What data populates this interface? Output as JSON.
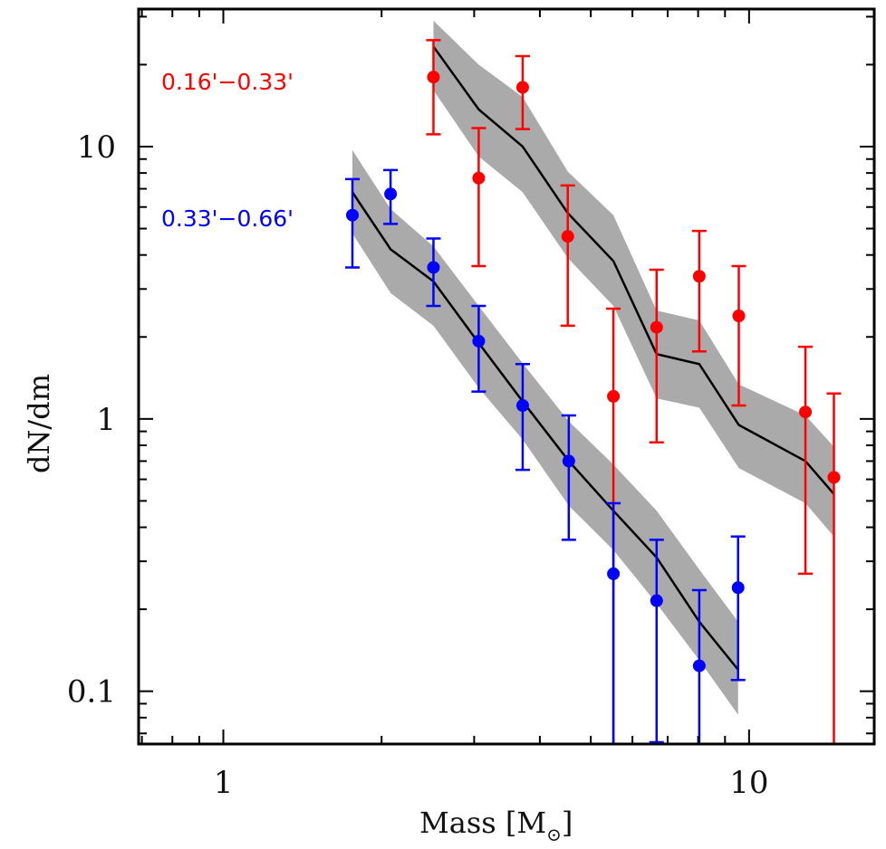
{
  "chart_data": {
    "type": "scatter",
    "title": "",
    "xlabel": "Mass [M",
    "xlabel_sub": "⊙",
    "xlabel_close": "]",
    "ylabel": "dN/dm",
    "xscale": "log",
    "yscale": "log",
    "xlim": [
      0.69,
      17.3
    ],
    "ylim": [
      0.064,
      32
    ],
    "x_ticks": [
      {
        "value": 1,
        "label": "1"
      },
      {
        "value": 10,
        "label": "10"
      }
    ],
    "y_ticks": [
      {
        "value": 0.1,
        "label": "0.1"
      },
      {
        "value": 1,
        "label": "1"
      },
      {
        "value": 10,
        "label": "10"
      }
    ],
    "grid": false,
    "series": [
      {
        "name": "0.16'−0.33'",
        "color": "#ff0000",
        "legend_position": "top-left",
        "points": [
          {
            "x": 2.51,
            "y": 18.0,
            "lo": 11.1,
            "hi": 24.6
          },
          {
            "x": 3.06,
            "y": 7.66,
            "lo": 3.64,
            "hi": 11.7
          },
          {
            "x": 3.71,
            "y": 16.5,
            "lo": 11.6,
            "hi": 21.5
          },
          {
            "x": 4.52,
            "y": 4.68,
            "lo": 2.2,
            "hi": 7.2
          },
          {
            "x": 5.52,
            "y": 1.21,
            "lo": 0.0,
            "hi": 2.54
          },
          {
            "x": 6.67,
            "y": 2.17,
            "lo": 0.82,
            "hi": 3.53
          },
          {
            "x": 8.04,
            "y": 3.34,
            "lo": 1.77,
            "hi": 4.9
          },
          {
            "x": 9.56,
            "y": 2.39,
            "lo": 1.12,
            "hi": 3.64
          },
          {
            "x": 12.8,
            "y": 1.06,
            "lo": 0.27,
            "hi": 1.84
          },
          {
            "x": 14.5,
            "y": 0.61,
            "lo": 0.0,
            "hi": 1.24
          }
        ],
        "model": {
          "x": [
            2.51,
            3.06,
            3.71,
            4.52,
            5.52,
            6.67,
            8.04,
            9.56,
            12.8,
            14.5
          ],
          "y": [
            23.3,
            13.7,
            10.0,
            5.7,
            3.8,
            1.73,
            1.59,
            0.95,
            0.7,
            0.53
          ],
          "band_hi": [
            29.0,
            20.0,
            15.2,
            8.1,
            5.6,
            2.5,
            2.3,
            1.34,
            1.03,
            0.79
          ],
          "band_lo": [
            16.1,
            9.2,
            6.8,
            3.9,
            2.6,
            1.19,
            1.1,
            0.66,
            0.49,
            0.37
          ]
        }
      },
      {
        "name": "0.33'−0.66'",
        "color": "#0000ff",
        "legend_position": "upper-left",
        "points": [
          {
            "x": 1.76,
            "y": 5.6,
            "lo": 3.6,
            "hi": 7.6
          },
          {
            "x": 2.08,
            "y": 6.7,
            "lo": 5.2,
            "hi": 8.2
          },
          {
            "x": 2.51,
            "y": 3.6,
            "lo": 2.6,
            "hi": 4.6
          },
          {
            "x": 3.06,
            "y": 1.93,
            "lo": 1.26,
            "hi": 2.6
          },
          {
            "x": 3.71,
            "y": 1.12,
            "lo": 0.65,
            "hi": 1.59
          },
          {
            "x": 4.54,
            "y": 0.7,
            "lo": 0.36,
            "hi": 1.03
          },
          {
            "x": 5.52,
            "y": 0.27,
            "lo": 0.0,
            "hi": 0.49
          },
          {
            "x": 6.67,
            "y": 0.215,
            "lo": 0.065,
            "hi": 0.36
          },
          {
            "x": 8.04,
            "y": 0.124,
            "lo": 0.0,
            "hi": 0.235
          },
          {
            "x": 9.53,
            "y": 0.24,
            "lo": 0.11,
            "hi": 0.37
          }
        ],
        "model": {
          "x": [
            1.76,
            2.08,
            2.51,
            3.06,
            3.71,
            4.54,
            5.52,
            6.67,
            8.04,
            9.53
          ],
          "y": [
            6.8,
            4.2,
            3.2,
            1.9,
            1.16,
            0.7,
            0.46,
            0.31,
            0.18,
            0.12
          ],
          "band_hi": [
            9.7,
            5.9,
            4.3,
            2.6,
            1.6,
            0.98,
            0.68,
            0.46,
            0.28,
            0.18
          ],
          "band_lo": [
            4.8,
            2.9,
            2.2,
            1.3,
            0.84,
            0.48,
            0.33,
            0.21,
            0.13,
            0.082
          ]
        }
      }
    ],
    "band_color": "#aaaaaa",
    "model_line_color": "#000000"
  }
}
